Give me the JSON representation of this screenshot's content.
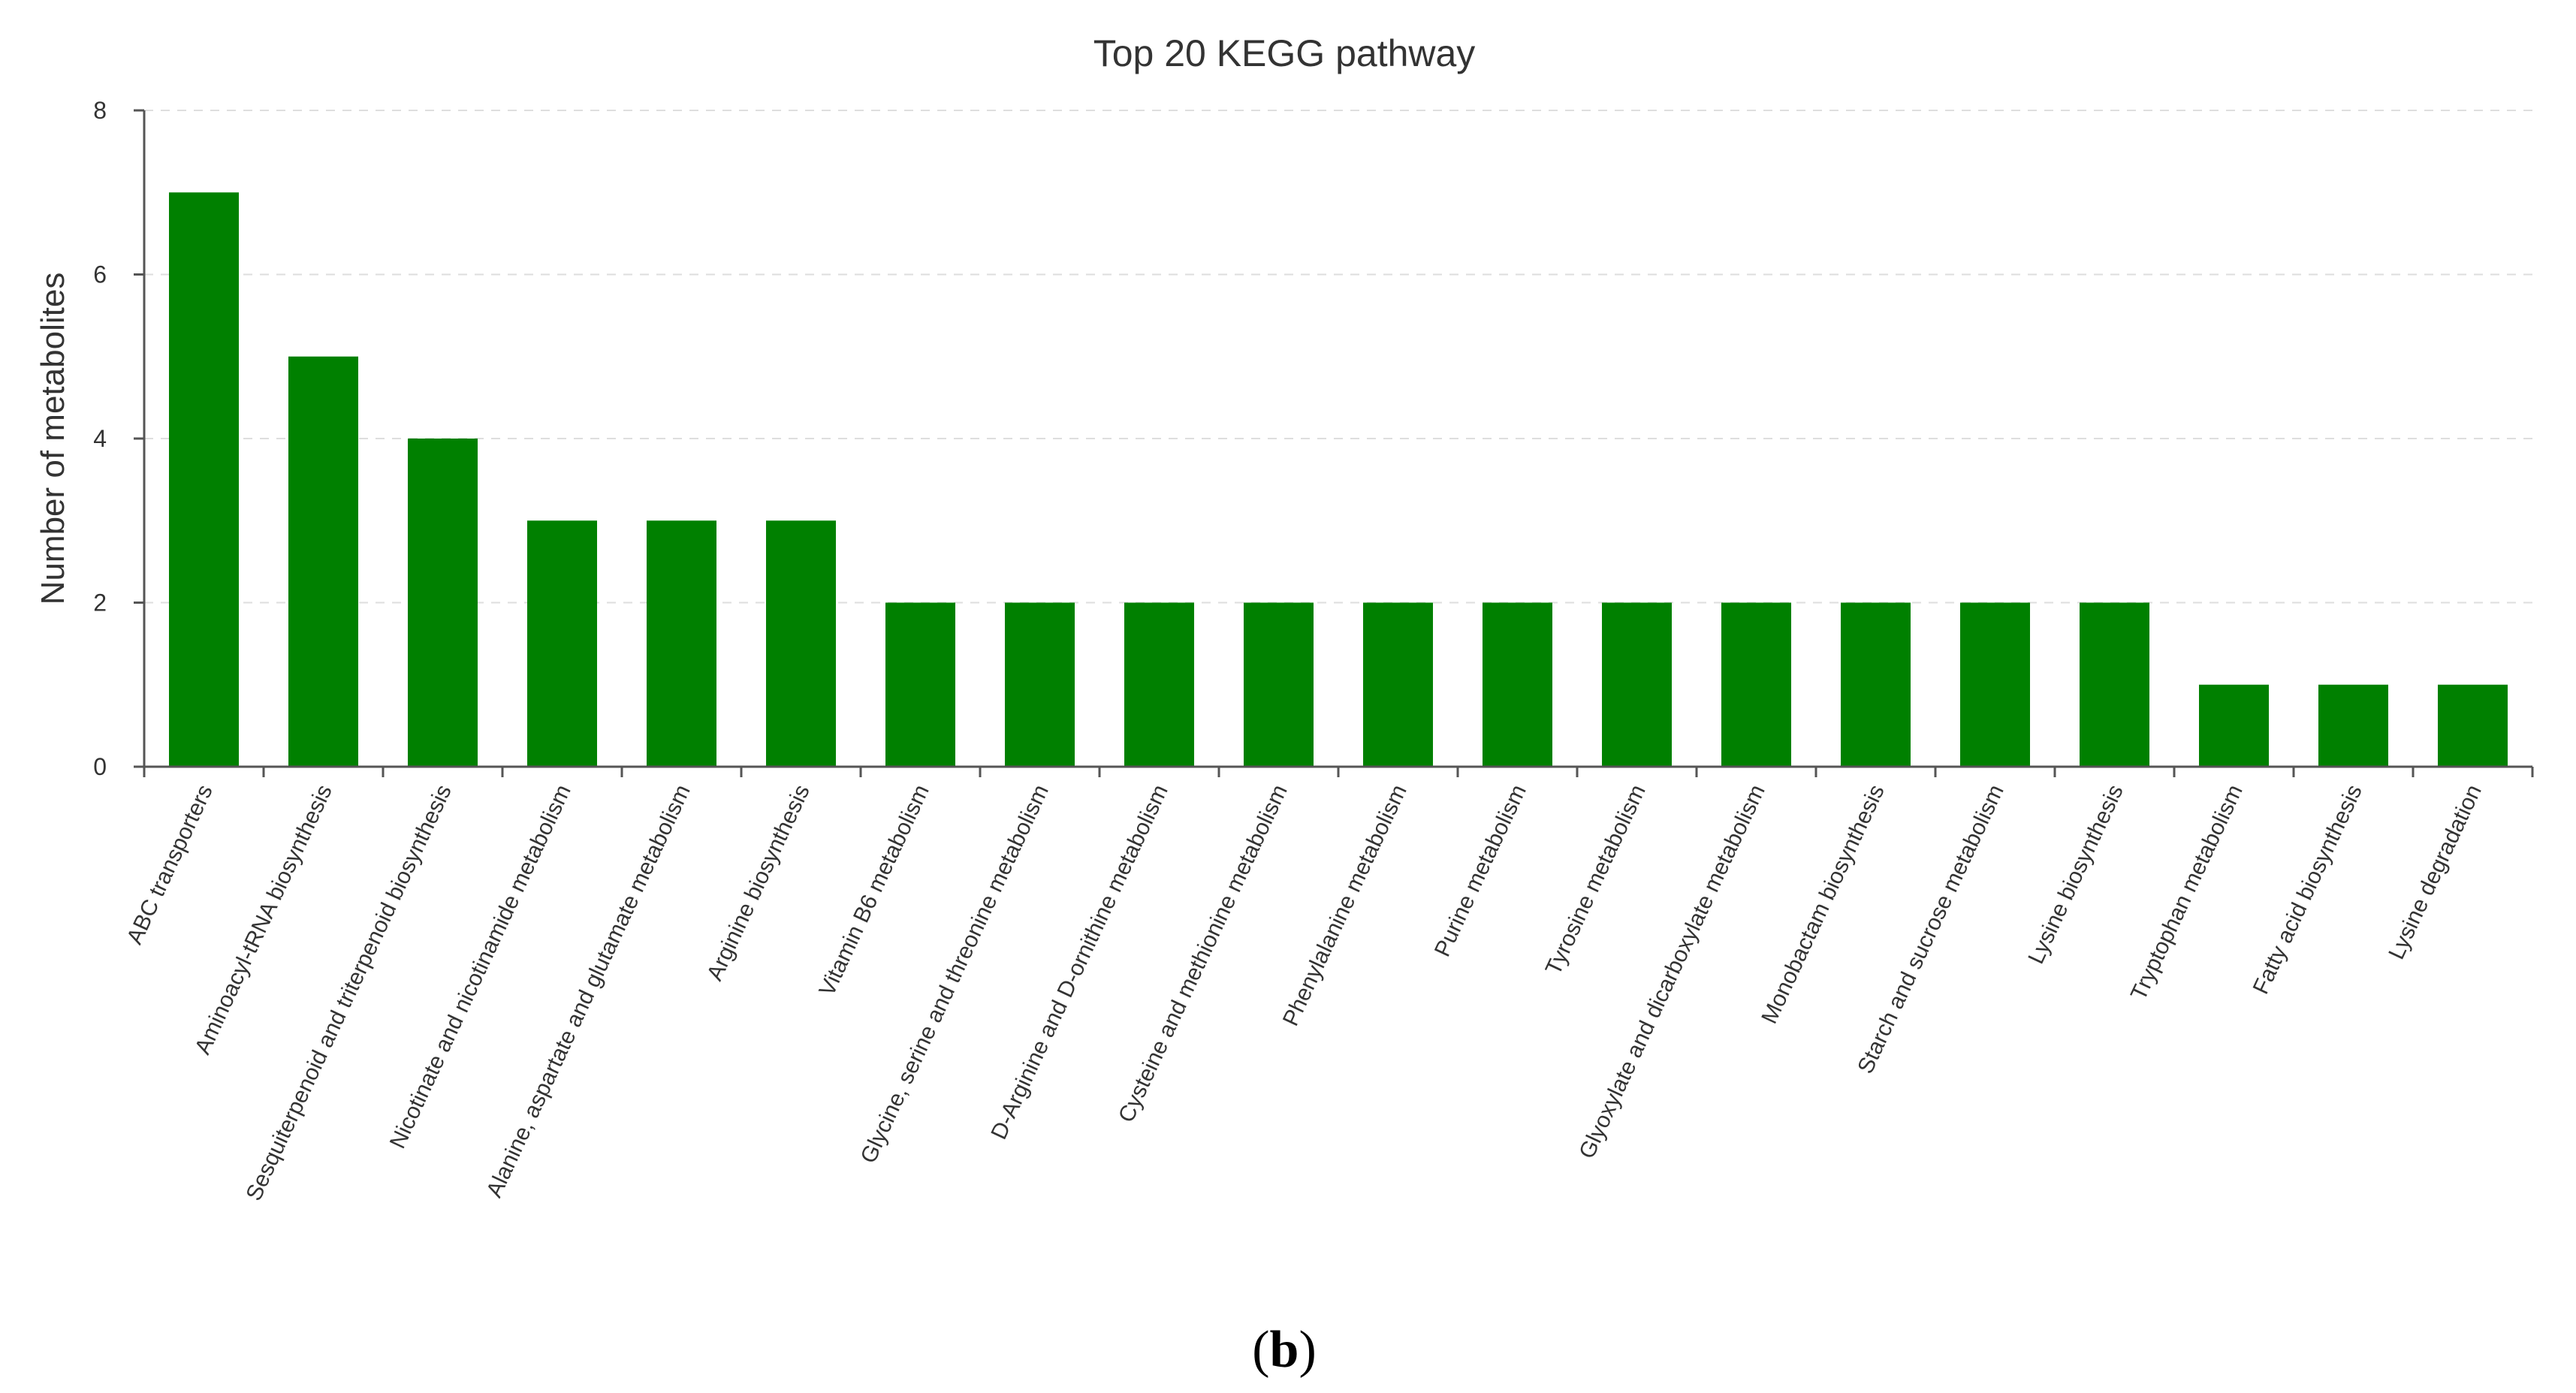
{
  "chart_data": {
    "type": "bar",
    "title": "Top 20 KEGG pathway",
    "ylabel": "Number of metabolites",
    "xlabel": "",
    "ylim": [
      0,
      8
    ],
    "yticks": [
      "0",
      "2",
      "4",
      "6",
      "8"
    ],
    "grid": "horizontal dashed",
    "bar_color": "#008000",
    "categories": [
      "ABC transporters",
      "Aminoacyl-tRNA biosynthesis",
      "Sesquiterpenoid and triterpenoid biosynthesis",
      "Nicotinate and nicotinamide metabolism",
      "Alanine, aspartate and glutamate metabolism",
      "Arginine biosynthesis",
      "Vitamin B6 metabolism",
      "Glycine, serine and threonine metabolism",
      "D-Arginine and D-ornithine metabolism",
      "Cysteine and methionine metabolism",
      "Phenylalanine metabolism",
      "Purine metabolism",
      "Tyrosine metabolism",
      "Glyoxylate and dicarboxylate metabolism",
      "Monobactam biosynthesis",
      "Starch and sucrose metabolism",
      "Lysine biosynthesis",
      "Tryptophan metabolism",
      "Fatty acid biosynthesis",
      "Lysine degradation"
    ],
    "values": [
      7,
      5,
      4,
      3,
      3,
      3,
      2,
      2,
      2,
      2,
      2,
      2,
      2,
      2,
      2,
      2,
      2,
      1,
      1,
      1
    ]
  },
  "caption": {
    "open": "(",
    "letter": "b",
    "close": ")"
  }
}
